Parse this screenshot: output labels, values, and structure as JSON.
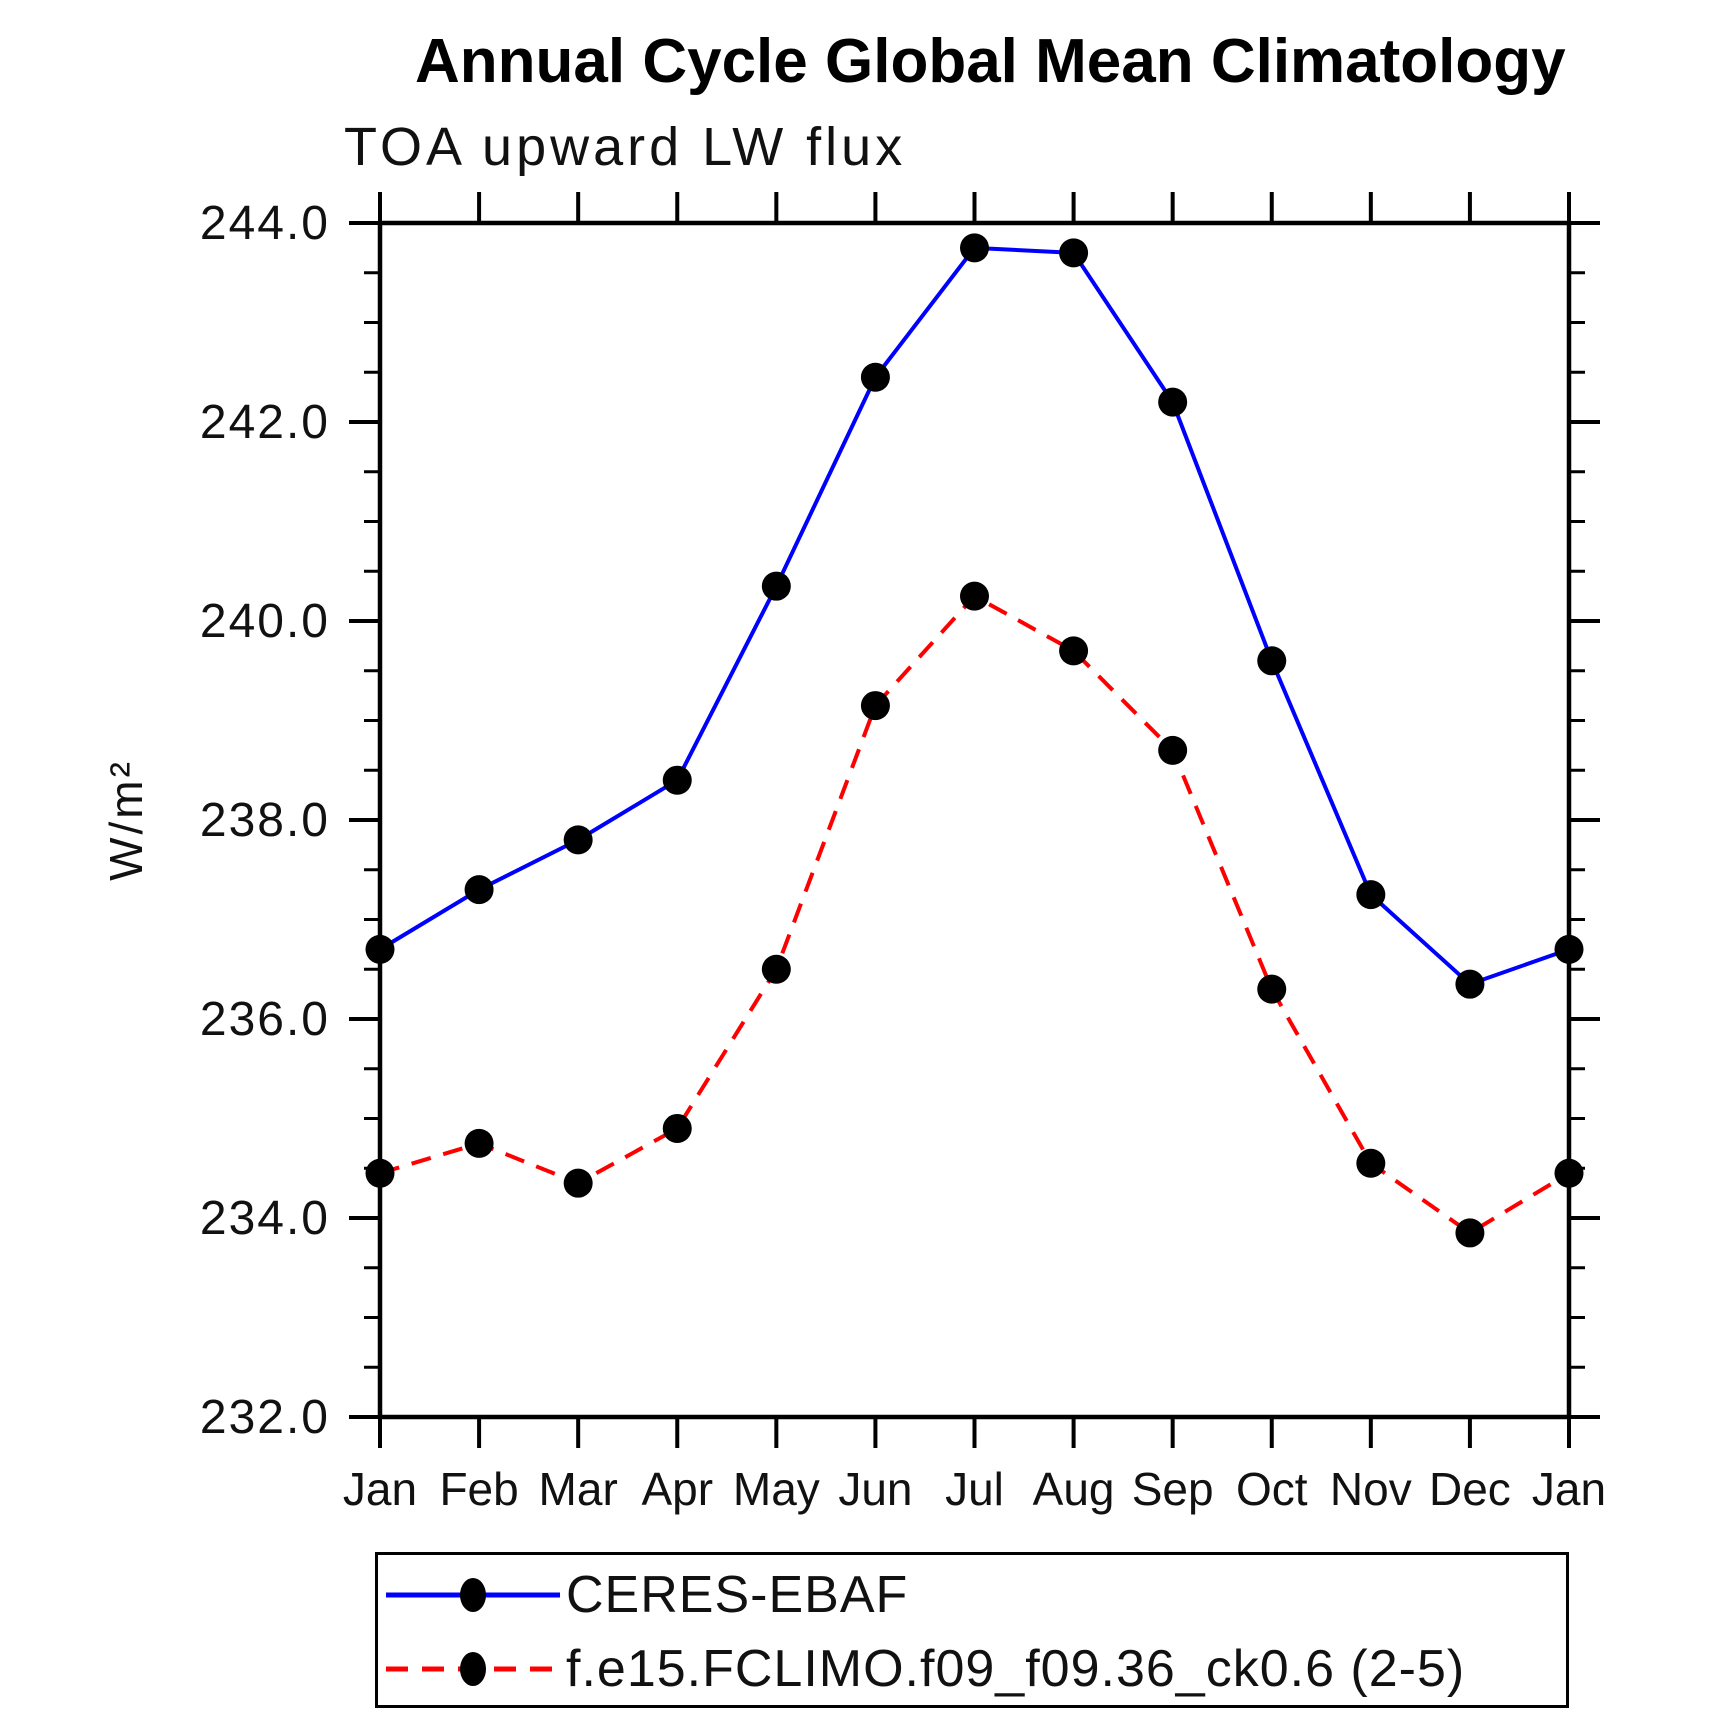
{
  "chart_data": {
    "type": "line",
    "title": "Annual Cycle Global Mean Climatology",
    "subtitle": "TOA upward LW flux",
    "ylabel": "W/m²",
    "categories": [
      "Jan",
      "Feb",
      "Mar",
      "Apr",
      "May",
      "Jun",
      "Jul",
      "Aug",
      "Sep",
      "Oct",
      "Nov",
      "Dec",
      "Jan"
    ],
    "series": [
      {
        "name": "CERES-EBAF",
        "color": "#0000ff",
        "style": "solid",
        "marker": "circle",
        "marker_color": "#000000",
        "values": [
          236.7,
          237.3,
          237.8,
          238.4,
          240.35,
          242.45,
          243.75,
          243.7,
          242.2,
          239.6,
          237.25,
          236.35,
          236.7
        ]
      },
      {
        "name": "f.e15.FCLIMO.f09_f09.36_ck0.6 (2-5)",
        "color": "#ff0000",
        "style": "dashed",
        "marker": "circle",
        "marker_color": "#000000",
        "values": [
          234.45,
          234.75,
          234.35,
          234.9,
          236.5,
          239.15,
          240.25,
          239.7,
          238.7,
          236.3,
          234.55,
          233.85,
          234.45
        ]
      }
    ],
    "ylim": [
      232.0,
      244.0
    ],
    "ytick_major_step": 2.0,
    "ytick_minor_step": 0.5,
    "ytick_labels": [
      "232.0",
      "234.0",
      "236.0",
      "238.0",
      "240.0",
      "242.0",
      "244.0"
    ],
    "xlabel": "",
    "grid": false,
    "legend_position": "bottom"
  }
}
